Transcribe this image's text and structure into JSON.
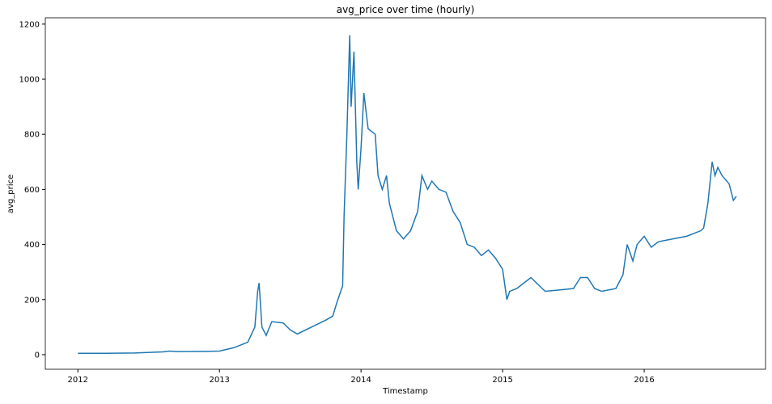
{
  "chart_data": {
    "type": "line",
    "title": "avg_price over time (hourly)",
    "x_label": "Timestamp",
    "y_label": "avg_price",
    "x": [
      2012.0,
      2012.2,
      2012.4,
      2012.6,
      2012.65,
      2012.7,
      2012.9,
      2013.0,
      2013.1,
      2013.2,
      2013.25,
      2013.27,
      2013.28,
      2013.3,
      2013.33,
      2013.37,
      2013.45,
      2013.5,
      2013.55,
      2013.65,
      2013.75,
      2013.8,
      2013.83,
      2013.87,
      2013.88,
      2013.9,
      2013.92,
      2013.93,
      2013.95,
      2013.97,
      2013.98,
      2014.0,
      2014.02,
      2014.05,
      2014.1,
      2014.12,
      2014.15,
      2014.18,
      2014.2,
      2014.25,
      2014.3,
      2014.35,
      2014.4,
      2014.43,
      2014.47,
      2014.5,
      2014.55,
      2014.6,
      2014.65,
      2014.7,
      2014.75,
      2014.8,
      2014.85,
      2014.9,
      2014.95,
      2015.0,
      2015.03,
      2015.05,
      2015.1,
      2015.2,
      2015.3,
      2015.4,
      2015.5,
      2015.55,
      2015.6,
      2015.65,
      2015.7,
      2015.8,
      2015.85,
      2015.88,
      2015.92,
      2015.95,
      2016.0,
      2016.05,
      2016.1,
      2016.2,
      2016.3,
      2016.4,
      2016.42,
      2016.45,
      2016.48,
      2016.5,
      2016.52,
      2016.55,
      2016.6,
      2016.63,
      2016.65
    ],
    "series": [
      {
        "name": "avg_price",
        "color": "#1f77b4",
        "values": [
          5,
          5,
          6,
          10,
          13,
          11,
          12,
          13,
          25,
          45,
          100,
          230,
          260,
          100,
          70,
          120,
          115,
          90,
          75,
          100,
          125,
          140,
          190,
          250,
          500,
          800,
          1160,
          900,
          1100,
          700,
          600,
          750,
          950,
          820,
          800,
          650,
          600,
          650,
          550,
          450,
          420,
          450,
          520,
          650,
          600,
          630,
          600,
          590,
          520,
          480,
          400,
          390,
          360,
          380,
          350,
          310,
          200,
          230,
          240,
          280,
          230,
          235,
          240,
          280,
          280,
          240,
          230,
          240,
          290,
          400,
          340,
          400,
          430,
          390,
          410,
          420,
          430,
          450,
          460,
          550,
          700,
          650,
          680,
          650,
          620,
          560,
          575
        ]
      }
    ],
    "xlim": [
      2011.77,
      2016.857
    ],
    "xticks": [
      2012,
      2013,
      2014,
      2015,
      2016
    ],
    "ylim": [
      -53,
      1223
    ],
    "yticks": [
      0,
      200,
      400,
      600,
      800,
      1000,
      1200
    ]
  }
}
